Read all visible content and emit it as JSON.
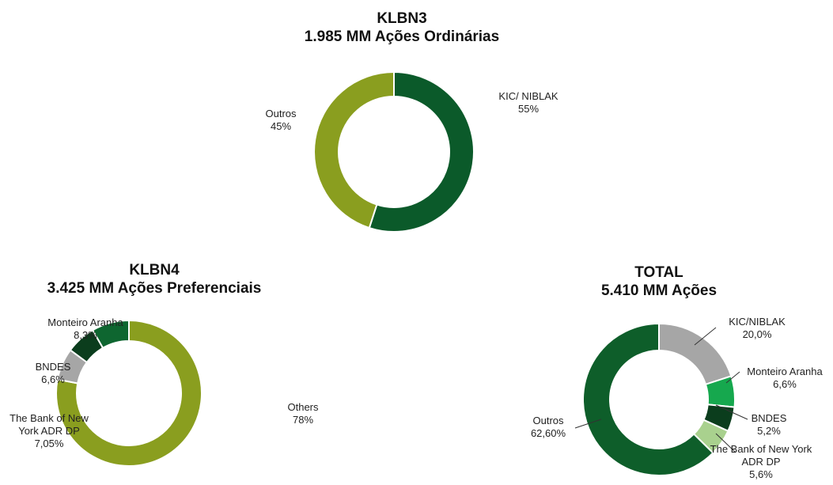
{
  "chart_data": [
    {
      "type": "pie",
      "title": "KLBN3",
      "subtitle": "1.985 MM Ações Ordinárias",
      "categories": [
        "KIC/ NIBLAK",
        "Outros"
      ],
      "values": [
        55,
        45
      ],
      "value_labels": [
        "55%",
        "45%"
      ],
      "colors": [
        "#0b5a2a",
        "#8a9e1f"
      ]
    },
    {
      "type": "pie",
      "title": "KLBN4",
      "subtitle": "3.425 MM Ações Preferenciais",
      "categories": [
        "Others",
        "The Bank of New York ADR DP",
        "BNDES",
        "Monteiro Aranha"
      ],
      "values": [
        78,
        7.05,
        6.6,
        8.3
      ],
      "value_labels": [
        "78%",
        "7,05%",
        "6,6%",
        "8,3%"
      ],
      "colors": [
        "#8a9e1f",
        "#a6a6a6",
        "#0b3d1d",
        "#0e6630"
      ]
    },
    {
      "type": "pie",
      "title": "TOTAL",
      "subtitle": "5.410 MM Ações",
      "categories": [
        "KIC/NIBLAK",
        "Monteiro Aranha",
        "BNDES",
        "The Bank of New York ADR DP",
        "Outros"
      ],
      "values": [
        20.0,
        6.6,
        5.2,
        5.6,
        62.6
      ],
      "value_labels": [
        "20,0%",
        "6,6%",
        "5,2%",
        "5,6%",
        "62,60%"
      ],
      "colors": [
        "#a6a6a6",
        "#16a84e",
        "#0b3d1d",
        "#a9d18e",
        "#0e5e2a"
      ]
    }
  ]
}
